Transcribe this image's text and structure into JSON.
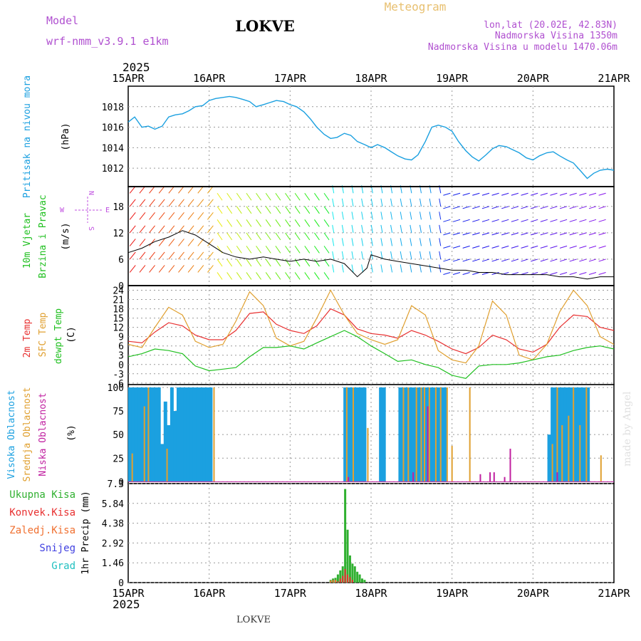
{
  "header": {
    "model_label": "Model",
    "model_name": "wrf-nmm_v3.9.1 e1km",
    "station": "LOKVE",
    "title": "Meteogram",
    "lonlat": "lon,lat (20.02E, 42.83N)",
    "altitude": "Nadmorska Visina 1350m",
    "model_altitude": "Nadmorska Visina u modelu 1470.06m",
    "year_top": "2025",
    "year_bottom": "2025",
    "footer_station": "LOKVE",
    "credit": "made by Angel"
  },
  "colors": {
    "pressure": "#1ba0e0",
    "temp2m": "#e83030",
    "sfc_temp": "#e0a030",
    "dewpt": "#20c020",
    "cloud_high": "#1ba0e0",
    "cloud_mid": "#e0a030",
    "cloud_low": "#c020a0",
    "precip_total": "#30b030",
    "precip_conv": "#e83030",
    "precip_frz": "#f07030",
    "snow": "#4040e0",
    "hail": "#20c0c0"
  },
  "chart_data": [
    {
      "type": "line",
      "title": "",
      "ylabel": [
        "Pritisak na nivou mora",
        "(hPa)"
      ],
      "x_ticks": [
        "15APR",
        "16APR",
        "17APR",
        "18APR",
        "19APR",
        "20APR",
        "21APR"
      ],
      "y_ticks": [
        1012,
        1014,
        1016,
        1018
      ],
      "ylim": [
        1010.2,
        1020.0
      ],
      "grid": true,
      "series": [
        {
          "x": [
            0,
            0.08,
            0.17,
            0.25,
            0.33,
            0.42,
            0.5,
            0.58,
            0.67,
            0.75,
            0.83,
            0.92,
            1.0,
            1.08,
            1.17,
            1.25,
            1.33,
            1.42,
            1.5,
            1.58,
            1.67,
            1.75,
            1.83,
            1.92,
            2.0,
            2.08,
            2.17,
            2.25,
            2.33,
            2.42,
            2.5,
            2.58,
            2.67,
            2.75,
            2.83,
            2.92,
            3.0,
            3.08,
            3.17,
            3.25,
            3.33,
            3.42,
            3.5,
            3.58,
            3.67,
            3.75,
            3.83,
            3.92,
            4.0,
            4.08,
            4.17,
            4.25,
            4.33,
            4.42,
            4.5,
            4.58,
            4.67,
            4.75,
            4.83,
            4.92,
            5.0,
            5.08,
            5.17,
            5.25,
            5.33,
            5.42,
            5.5,
            5.58,
            5.67,
            5.75,
            5.83,
            5.92,
            6.0
          ],
          "values": [
            1016.5,
            1017.0,
            1016.0,
            1016.1,
            1015.8,
            1016.1,
            1017.0,
            1017.2,
            1017.3,
            1017.6,
            1018.0,
            1018.1,
            1018.6,
            1018.8,
            1018.9,
            1019.0,
            1018.9,
            1018.7,
            1018.5,
            1018.0,
            1018.2,
            1018.4,
            1018.6,
            1018.5,
            1018.2,
            1018.0,
            1017.5,
            1016.8,
            1016.0,
            1015.3,
            1014.9,
            1015.0,
            1015.4,
            1015.2,
            1014.6,
            1014.3,
            1014.0,
            1014.3,
            1014.0,
            1013.6,
            1013.2,
            1012.9,
            1012.8,
            1013.3,
            1014.6,
            1016.0,
            1016.2,
            1016.0,
            1015.6,
            1014.6,
            1013.7,
            1013.1,
            1012.7,
            1013.3,
            1013.9,
            1014.2,
            1014.1,
            1013.8,
            1013.5,
            1013.0,
            1012.8,
            1013.2,
            1013.5,
            1013.6,
            1013.2,
            1012.8,
            1012.5,
            1011.8,
            1011.0,
            1011.5,
            1011.8,
            1011.9,
            1011.8
          ]
        }
      ]
    },
    {
      "type": "line",
      "title": "",
      "ylabel": [
        "10m Vjetar",
        "Brzina i Pravac",
        "(m/s)"
      ],
      "y_ticks": [
        0,
        6,
        12,
        18
      ],
      "ylim": [
        0,
        22.5
      ],
      "grid": true,
      "compass": {
        "north": "N",
        "south": "S",
        "east": "E",
        "west": "W"
      },
      "series": [
        {
          "name": "wind speed",
          "x": [
            0,
            0.17,
            0.33,
            0.5,
            0.67,
            0.83,
            1.0,
            1.17,
            1.33,
            1.5,
            1.67,
            1.83,
            2.0,
            2.17,
            2.33,
            2.5,
            2.67,
            2.83,
            2.95,
            3.0,
            3.17,
            3.33,
            3.5,
            3.67,
            3.83,
            4.0,
            4.17,
            4.33,
            4.5,
            4.67,
            4.83,
            5.0,
            5.17,
            5.33,
            5.5,
            5.67,
            5.83,
            6.0
          ],
          "values": [
            7.5,
            8.5,
            10.0,
            11.0,
            12.5,
            11.5,
            9.5,
            7.5,
            6.5,
            6.0,
            6.5,
            6.0,
            5.5,
            6.0,
            5.5,
            6.0,
            5.0,
            2.0,
            4.0,
            7.0,
            6.0,
            5.5,
            5.0,
            4.5,
            4.0,
            3.5,
            3.5,
            3.0,
            3.0,
            2.5,
            2.5,
            2.5,
            2.5,
            2.0,
            2.0,
            1.5,
            2.0,
            2.0
          ]
        }
      ],
      "wind_direction": "N (from the north); veering to W after 18APR"
    },
    {
      "type": "line",
      "title": "",
      "ylabel": [
        "2m Temp",
        "SFC Temp",
        "dewpt Temp",
        "(C)"
      ],
      "y_ticks": [
        -6,
        -3,
        0,
        3,
        6,
        9,
        12,
        15,
        18,
        21,
        24
      ],
      "ylim": [
        -6.5,
        25.5
      ],
      "grid": true,
      "x": [
        0,
        0.17,
        0.33,
        0.5,
        0.67,
        0.83,
        1.0,
        1.17,
        1.33,
        1.5,
        1.67,
        1.83,
        2.0,
        2.17,
        2.33,
        2.5,
        2.67,
        2.83,
        3.0,
        3.17,
        3.33,
        3.5,
        3.67,
        3.83,
        4.0,
        4.17,
        4.33,
        4.5,
        4.67,
        4.83,
        5.0,
        5.17,
        5.33,
        5.5,
        5.67,
        5.83,
        6.0
      ],
      "series": [
        {
          "name": "2m Temp",
          "values": [
            7.5,
            7.0,
            10.5,
            13.5,
            12.5,
            9.5,
            8.0,
            8.0,
            11.0,
            16.5,
            17.0,
            13.0,
            11.0,
            10.0,
            12.5,
            18.0,
            16.0,
            11.5,
            10.0,
            9.5,
            8.5,
            11.0,
            9.5,
            7.5,
            5.0,
            3.5,
            5.5,
            9.5,
            8.0,
            5.0,
            4.0,
            6.5,
            12.0,
            16.0,
            15.5,
            12.0,
            11.0
          ]
        },
        {
          "name": "SFC Temp",
          "values": [
            6.5,
            5.5,
            12.0,
            18.5,
            16.0,
            7.5,
            5.5,
            6.5,
            14.0,
            23.5,
            19.0,
            8.5,
            6.0,
            7.5,
            15.0,
            24.0,
            16.0,
            10.0,
            8.0,
            6.5,
            8.0,
            19.0,
            16.0,
            4.5,
            1.5,
            0.5,
            6.0,
            20.5,
            16.0,
            3.0,
            1.5,
            6.5,
            17.0,
            24.0,
            19.0,
            9.0,
            6.5
          ]
        },
        {
          "name": "dewpt Temp",
          "values": [
            2.5,
            3.5,
            5.0,
            4.5,
            3.5,
            -0.5,
            -2.0,
            -1.5,
            -1.0,
            2.5,
            5.5,
            5.5,
            6.0,
            5.0,
            7.0,
            9.0,
            11.0,
            9.0,
            6.0,
            3.5,
            1.0,
            1.5,
            0.0,
            -1.0,
            -3.5,
            -4.5,
            -0.5,
            0.0,
            0.0,
            0.5,
            1.5,
            2.5,
            3.0,
            4.5,
            5.5,
            6.0,
            5.0
          ]
        }
      ]
    },
    {
      "type": "bar",
      "title": "",
      "ylabel": [
        "Visoka Oblacnost",
        "Srednja Oblacnost",
        "Niska Oblacnost",
        "(%)"
      ],
      "y_ticks": [
        0,
        25,
        50,
        75,
        100
      ],
      "ylim": [
        -2,
        103
      ],
      "grid": true,
      "series": [
        {
          "name": "Visoka Oblacnost",
          "x": [
            0.02,
            0.06,
            0.1,
            0.14,
            0.18,
            0.22,
            0.27,
            0.3,
            0.34,
            0.38,
            0.42,
            0.46,
            0.5,
            0.54,
            0.58,
            0.62,
            0.66,
            0.7,
            0.74,
            0.78,
            0.82,
            0.86,
            0.9,
            0.94,
            0.98,
            1.02,
            2.68,
            2.72,
            2.76,
            2.8,
            2.84,
            2.88,
            2.92,
            3.12,
            3.16,
            3.36,
            3.4,
            3.44,
            3.48,
            3.52,
            3.56,
            3.6,
            3.64,
            3.68,
            3.72,
            3.76,
            3.8,
            3.84,
            3.88,
            3.92,
            5.2,
            5.24,
            5.28,
            5.32,
            5.36,
            5.4,
            5.44,
            5.48,
            5.52,
            5.56,
            5.6,
            5.64,
            5.68
          ],
          "values": [
            100,
            100,
            100,
            100,
            100,
            100,
            100,
            100,
            100,
            100,
            40,
            85,
            60,
            100,
            75,
            100,
            100,
            100,
            100,
            100,
            100,
            100,
            100,
            100,
            100,
            100,
            100,
            100,
            100,
            100,
            100,
            100,
            100,
            100,
            100,
            100,
            100,
            100,
            100,
            100,
            100,
            100,
            100,
            100,
            100,
            100,
            100,
            100,
            100,
            100,
            50,
            100,
            100,
            100,
            100,
            100,
            100,
            100,
            100,
            100,
            100,
            100,
            100
          ]
        },
        {
          "name": "Srednja Oblacnost",
          "x": [
            0.05,
            0.2,
            0.25,
            0.48,
            1.06,
            2.7,
            2.78,
            2.96,
            3.4,
            3.46,
            3.56,
            3.62,
            3.66,
            3.72,
            3.8,
            3.86,
            3.94,
            4.0,
            4.22,
            5.24,
            5.3,
            5.36,
            5.44,
            5.5,
            5.58,
            5.66,
            5.84
          ],
          "values": [
            30,
            80,
            100,
            35,
            100,
            100,
            100,
            57,
            100,
            100,
            100,
            100,
            100,
            100,
            100,
            100,
            100,
            38,
            100,
            40,
            100,
            60,
            70,
            100,
            60,
            100,
            28
          ]
        },
        {
          "name": "Niska Oblacnost",
          "x": [
            2.72,
            3.52,
            3.7,
            4.35,
            4.47,
            4.52,
            4.65,
            4.72,
            5.3
          ],
          "values": [
            5,
            10,
            80,
            8,
            10,
            10,
            5,
            35,
            10
          ]
        }
      ]
    },
    {
      "type": "bar",
      "title": "",
      "ylabel": [
        "1hr Precip (mm)"
      ],
      "y_ticks": [
        0,
        1.46,
        2.92,
        4.38,
        5.84,
        7.3
      ],
      "ylim": [
        0,
        7.3
      ],
      "grid": true,
      "legend": [
        "Ukupna Kisa",
        "Konvek.Kisa",
        "Zaledj.Kisa",
        "Snijeg",
        "Grad"
      ],
      "x_ticks": [
        "15APR",
        "16APR",
        "17APR",
        "18APR",
        "19APR",
        "20APR",
        "21APR"
      ],
      "series": [
        {
          "name": "Ukupna Kisa",
          "x": [
            2.5,
            2.53,
            2.56,
            2.59,
            2.62,
            2.65,
            2.68,
            2.71,
            2.74,
            2.77,
            2.8,
            2.83,
            2.86,
            2.89,
            2.92
          ],
          "values": [
            0.2,
            0.3,
            0.35,
            0.6,
            0.9,
            1.2,
            6.9,
            3.9,
            2.0,
            1.4,
            1.2,
            0.8,
            0.6,
            0.3,
            0.2
          ]
        },
        {
          "name": "Konvek.Kisa",
          "x": [
            2.59,
            2.62,
            2.65,
            2.68,
            2.71,
            2.74,
            2.77
          ],
          "values": [
            0.1,
            0.3,
            0.5,
            1.0,
            0.6,
            0.4,
            0.2
          ]
        },
        {
          "name": "Zaledj.Kisa",
          "x": [
            2.5,
            2.53,
            2.56
          ],
          "values": [
            0.15,
            0.2,
            0.2
          ]
        }
      ]
    }
  ]
}
